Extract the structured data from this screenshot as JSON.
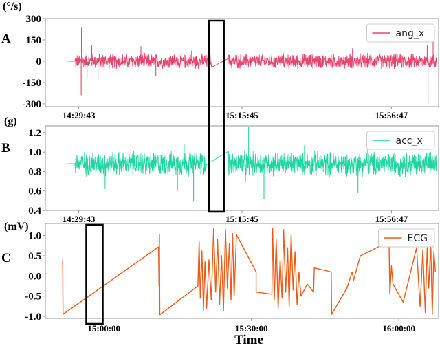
{
  "figure": {
    "xlabel": "Time"
  },
  "chart_data": [
    {
      "type": "line",
      "panel_label": "A",
      "unit_label": "(°/s)",
      "ylim": [
        -320,
        300
      ],
      "yticks": [
        300,
        150,
        0,
        -150,
        -300
      ],
      "xlim": [
        0,
        100
      ],
      "xticks": [
        {
          "pos": 8.5,
          "label": "14:29:43"
        },
        {
          "pos": 50,
          "label": "15:15:45"
        },
        {
          "pos": 88,
          "label": "15:56:47"
        }
      ],
      "legend_position": "top-right",
      "series": [
        {
          "name": "ang_x",
          "color": "#e8456e",
          "amplitude": 50,
          "baseline": 0,
          "gap": [
            42.3,
            46.6
          ],
          "span": [
            5.5,
            99.5
          ],
          "spikes": [
            {
              "x": 9.2,
              "y": 240
            },
            {
              "x": 9.1,
              "y": -240
            },
            {
              "x": 9.3,
              "y": 175
            },
            {
              "x": 10.6,
              "y": -120
            },
            {
              "x": 11.8,
              "y": 110
            },
            {
              "x": 13.4,
              "y": -130
            },
            {
              "x": 24.3,
              "y": 105
            },
            {
              "x": 28.1,
              "y": -105
            },
            {
              "x": 37.2,
              "y": 75
            },
            {
              "x": 78.1,
              "y": 90
            },
            {
              "x": 97.1,
              "y": 110
            },
            {
              "x": 97.3,
              "y": -300
            },
            {
              "x": 98.6,
              "y": 140
            }
          ]
        }
      ],
      "highlight": {
        "x0": 41.6,
        "x1": 45.4
      }
    },
    {
      "type": "line",
      "panel_label": "B",
      "unit_label": "(g)",
      "ylim": [
        0.4,
        1.27
      ],
      "yticks": [
        1.2,
        1.0,
        0.8,
        0.6,
        0.4
      ],
      "xlim": [
        0,
        100
      ],
      "xticks": [
        {
          "pos": 8.5,
          "label": "14:29:43"
        },
        {
          "pos": 50,
          "label": "15:15:45"
        },
        {
          "pos": 88,
          "label": "15:56:47"
        }
      ],
      "legend_position": "top-right",
      "series": [
        {
          "name": "acc_x",
          "color": "#1fd5a0",
          "amplitude": 0.12,
          "baseline": 0.88,
          "gap": [
            41.0,
            46.6
          ],
          "span": [
            5.5,
            99.5
          ],
          "spikes": [
            {
              "x": 37.7,
              "y": 0.5
            },
            {
              "x": 35.3,
              "y": 1.08
            },
            {
              "x": 33.6,
              "y": 0.6
            },
            {
              "x": 15.2,
              "y": 0.62
            },
            {
              "x": 51.7,
              "y": 1.26
            },
            {
              "x": 50.9,
              "y": 0.7
            },
            {
              "x": 55.6,
              "y": 0.52
            },
            {
              "x": 79.5,
              "y": 0.58
            },
            {
              "x": 82.0,
              "y": 1.07
            },
            {
              "x": 65.9,
              "y": 1.07
            }
          ]
        }
      ],
      "highlight": {
        "x0": 41.6,
        "x1": 45.4
      }
    },
    {
      "type": "line",
      "panel_label": "C",
      "unit_label": "(mV)",
      "ylim": [
        -1.05,
        1.3
      ],
      "yticks": [
        1.0,
        0.5,
        0.0,
        -0.5,
        -1.0
      ],
      "xlim": [
        0,
        100
      ],
      "xticks": [
        {
          "pos": 14.9,
          "label": "15:00:00"
        },
        {
          "pos": 52.4,
          "label": "15:30:00"
        },
        {
          "pos": 89.9,
          "label": "16:00:00"
        }
      ],
      "legend_position": "top-right",
      "series": [
        {
          "name": "ECG",
          "color": "#f05a14",
          "points": [
            [
              4.4,
              0.4
            ],
            [
              4.5,
              -0.95
            ],
            [
              28.8,
              0.72
            ],
            [
              28.9,
              -0.25
            ],
            [
              29.0,
              1.02
            ],
            [
              29.1,
              -0.96
            ],
            [
              38.8,
              -0.25
            ],
            [
              39.1,
              0.85
            ],
            [
              39.4,
              -0.55
            ],
            [
              39.8,
              0.62
            ],
            [
              40.2,
              -0.85
            ],
            [
              40.6,
              0.35
            ],
            [
              41.0,
              -0.8
            ],
            [
              41.6,
              0.4
            ],
            [
              42.2,
              -0.6
            ],
            [
              42.8,
              1.18
            ],
            [
              43.3,
              -0.4
            ],
            [
              43.8,
              0.9
            ],
            [
              44.3,
              -0.7
            ],
            [
              44.8,
              0.5
            ],
            [
              45.3,
              -0.85
            ],
            [
              45.8,
              1.15
            ],
            [
              46.3,
              -0.3
            ],
            [
              46.8,
              0.8
            ],
            [
              47.2,
              -0.6
            ],
            [
              47.6,
              1.05
            ],
            [
              48.0,
              -0.5
            ],
            [
              48.4,
              0.5
            ],
            [
              48.6,
              1.02
            ],
            [
              53.6,
              0.1
            ],
            [
              53.6,
              -0.4
            ],
            [
              57.6,
              -0.45
            ],
            [
              57.8,
              1.18
            ],
            [
              58.2,
              -0.6
            ],
            [
              58.7,
              0.9
            ],
            [
              59.2,
              -0.8
            ],
            [
              59.7,
              0.4
            ],
            [
              60.2,
              -0.55
            ],
            [
              60.6,
              1.15
            ],
            [
              61.1,
              -0.4
            ],
            [
              61.6,
              0.7
            ],
            [
              62.0,
              -0.75
            ],
            [
              62.5,
              1.02
            ],
            [
              63.0,
              -0.35
            ],
            [
              63.5,
              0.6
            ],
            [
              64.0,
              -0.7
            ],
            [
              64.5,
              0.1
            ],
            [
              65.0,
              -0.5
            ],
            [
              66.6,
              -0.2
            ],
            [
              68.2,
              -0.4
            ],
            [
              68.4,
              0.2
            ],
            [
              72.7,
              0.1
            ],
            [
              72.8,
              -0.95
            ],
            [
              76.7,
              -0.3
            ],
            [
              78.0,
              0.1
            ],
            [
              78.4,
              -0.1
            ],
            [
              80.1,
              0.5
            ],
            [
              87.4,
              0.85
            ],
            [
              87.6,
              -0.45
            ],
            [
              88.0,
              0.25
            ],
            [
              88.4,
              -0.2
            ],
            [
              91.0,
              -0.65
            ],
            [
              94.4,
              0.7
            ],
            [
              95.0,
              -0.3
            ],
            [
              95.3,
              -0.75
            ],
            [
              96.0,
              0.65
            ],
            [
              96.6,
              -0.9
            ],
            [
              97.1,
              0.7
            ],
            [
              97.5,
              -0.3
            ],
            [
              98.0,
              0.8
            ],
            [
              98.4,
              -0.95
            ],
            [
              98.8,
              0.6
            ],
            [
              99.2,
              0.1
            ]
          ]
        }
      ],
      "highlight": {
        "x0": 10.4,
        "x1": 14.6
      }
    }
  ]
}
